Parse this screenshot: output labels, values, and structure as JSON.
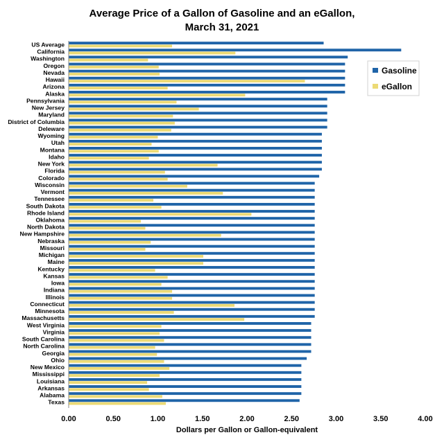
{
  "chart_data": {
    "type": "bar",
    "orientation": "horizontal",
    "title": [
      "Average Price of a Gallon of Gasoline and an eGallon,",
      "March 31, 2021"
    ],
    "xlabel": "Dollars per Gallon or Gallon-equivalent",
    "ylabel": "",
    "xlim": [
      0,
      4
    ],
    "xticks": [
      "0.00",
      "0.50",
      "1.00",
      "1.50",
      "2.00",
      "2.50",
      "3.00",
      "3.50",
      "4.00"
    ],
    "grid": false,
    "legend_position": "right",
    "categories": [
      "US Average",
      "California",
      "Washington",
      "Oregon",
      "Nevada",
      "Hawaii",
      "Arizona",
      "Alaska",
      "Pennsylvania",
      "New Jersey",
      "Maryland",
      "District of Columbia",
      "Deleware",
      "Wyoming",
      "Utah",
      "Montana",
      "Idaho",
      "New York",
      "Florida",
      "Colorado",
      "Wisconsin",
      "Vermont",
      "Tennessee",
      "South Dakota",
      "Rhode Island",
      "Oklahoma",
      "North Dakota",
      "New Hampshire",
      "Nebraska",
      "Missouri",
      "Michigan",
      "Maine",
      "Kentucky",
      "Kansas",
      "Iowa",
      "Indiana",
      "Illinois",
      "Connecticut",
      "Minnesota",
      "Massachusetts",
      "West Virginia",
      "Virginia",
      "South Carolina",
      "North Carolina",
      "Georgia",
      "Ohio",
      "New Mexico",
      "Mississippi",
      "Louisiana",
      "Arkansas",
      "Alabama",
      "Texas"
    ],
    "series": [
      {
        "name": "Gasoline",
        "color": "#1F64A8",
        "values": [
          2.86,
          3.73,
          3.13,
          3.1,
          3.1,
          3.1,
          3.1,
          3.1,
          2.9,
          2.9,
          2.9,
          2.9,
          2.9,
          2.84,
          2.84,
          2.84,
          2.84,
          2.84,
          2.84,
          2.81,
          2.76,
          2.76,
          2.76,
          2.76,
          2.76,
          2.76,
          2.76,
          2.76,
          2.76,
          2.76,
          2.76,
          2.76,
          2.76,
          2.76,
          2.76,
          2.76,
          2.76,
          2.76,
          2.76,
          2.76,
          2.72,
          2.72,
          2.72,
          2.72,
          2.72,
          2.67,
          2.61,
          2.61,
          2.61,
          2.61,
          2.61,
          2.59
        ]
      },
      {
        "name": "eGallon",
        "color": "#ECDA75",
        "values": [
          1.16,
          1.87,
          0.89,
          1.01,
          1.02,
          2.65,
          1.11,
          1.98,
          1.21,
          1.46,
          1.17,
          1.19,
          1.15,
          1.0,
          0.93,
          1.01,
          0.9,
          1.67,
          1.08,
          1.11,
          1.33,
          1.73,
          0.95,
          1.04,
          2.05,
          0.81,
          0.86,
          1.71,
          0.92,
          0.86,
          1.51,
          1.51,
          0.97,
          1.11,
          1.04,
          1.16,
          1.16,
          1.86,
          1.18,
          1.97,
          1.04,
          1.02,
          1.07,
          0.97,
          0.99,
          1.07,
          1.13,
          1.02,
          0.88,
          0.9,
          1.05,
          1.09
        ]
      }
    ]
  }
}
